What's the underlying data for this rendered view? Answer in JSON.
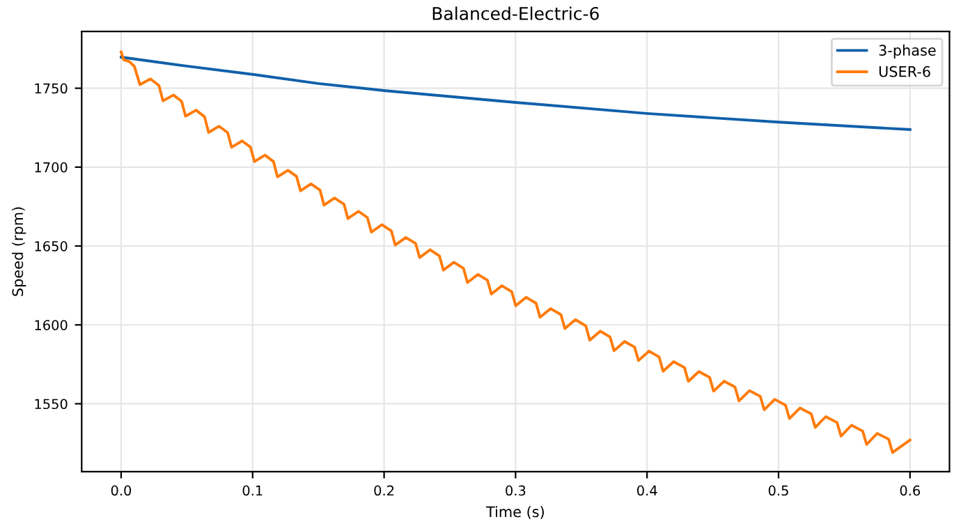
{
  "chart_data": {
    "type": "line",
    "title": "Balanced-Electric-6",
    "xlabel": "Time (s)",
    "ylabel": "Speed (rpm)",
    "xlim": [
      -0.03,
      0.63
    ],
    "ylim": [
      1507,
      1786
    ],
    "xticks": [
      {
        "value": 0,
        "label": "0.0"
      },
      0.1,
      0.2,
      0.3,
      0.4,
      0.5,
      0.6
    ],
    "yticks": [
      1550,
      1600,
      1650,
      1700,
      1750
    ],
    "grid": true,
    "legend": "top right",
    "line_style": "solid",
    "series": [
      {
        "name": "3-phase",
        "color": "#1060aa",
        "x": [
          0,
          0.05,
          0.1,
          0.15,
          0.2,
          0.3,
          0.4,
          0.5,
          0.6
        ],
        "values": [
          1769.7,
          1764,
          1758.8,
          1753,
          1748.5,
          1741,
          1734,
          1728.5,
          1723.8
        ]
      },
      {
        "name": "USER-6",
        "color": "#ff7b0a",
        "x": [
          0,
          0.002,
          0.006,
          0.01,
          0.0143,
          0.0223,
          0.0288,
          0.0318,
          0.0398,
          0.046,
          0.049,
          0.057,
          0.0635,
          0.0665,
          0.0745,
          0.081,
          0.084,
          0.092,
          0.0984,
          0.1014,
          0.1094,
          0.1159,
          0.1189,
          0.1269,
          0.1334,
          0.1364,
          0.1444,
          0.1513,
          0.1543,
          0.1623,
          0.1695,
          0.1725,
          0.1805,
          0.1873,
          0.1903,
          0.1983,
          0.2055,
          0.2085,
          0.2165,
          0.224,
          0.227,
          0.235,
          0.2421,
          0.2451,
          0.2531,
          0.2604,
          0.2634,
          0.2714,
          0.2786,
          0.2816,
          0.2896,
          0.2971,
          0.3001,
          0.3081,
          0.3156,
          0.3186,
          0.3266,
          0.3345,
          0.3375,
          0.3455,
          0.3534,
          0.3564,
          0.3644,
          0.3719,
          0.3749,
          0.3829,
          0.3905,
          0.3935,
          0.4015,
          0.4092,
          0.4122,
          0.4202,
          0.4284,
          0.4314,
          0.4394,
          0.4476,
          0.4506,
          0.4586,
          0.4669,
          0.4699,
          0.4779,
          0.4861,
          0.4891,
          0.4971,
          0.5053,
          0.5083,
          0.5163,
          0.5249,
          0.5279,
          0.5359,
          0.5445,
          0.5475,
          0.5555,
          0.564,
          0.567,
          0.575,
          0.5837,
          0.5867,
          0.6
        ],
        "values": [
          1773,
          1768,
          1767,
          1764,
          1752.3,
          1755.9,
          1751.7,
          1742.0,
          1745.7,
          1741.7,
          1732.3,
          1736.1,
          1731.9,
          1722.0,
          1725.9,
          1721.9,
          1712.6,
          1716.6,
          1712.7,
          1703.5,
          1707.6,
          1703.5,
          1693.8,
          1698.0,
          1694.1,
          1685.0,
          1689.4,
          1685.4,
          1675.9,
          1680.4,
          1676.5,
          1667.4,
          1672.0,
          1668.0,
          1658.8,
          1663.5,
          1659.6,
          1650.6,
          1655.4,
          1651.6,
          1642.7,
          1647.6,
          1643.7,
          1634.7,
          1639.7,
          1635.8,
          1626.8,
          1632.0,
          1628.3,
          1619.5,
          1624.8,
          1621.0,
          1612.1,
          1617.5,
          1613.7,
          1604.8,
          1610.3,
          1606.5,
          1597.7,
          1603.3,
          1599.4,
          1590.3,
          1596.0,
          1592.3,
          1583.6,
          1589.5,
          1585.9,
          1577.4,
          1583.4,
          1579.6,
          1570.6,
          1576.7,
          1573.0,
          1564.2,
          1570.4,
          1566.7,
          1558.0,
          1564.3,
          1560.6,
          1551.8,
          1558.3,
          1554.7,
          1546.2,
          1552.8,
          1549.1,
          1540.6,
          1547.3,
          1543.6,
          1535.0,
          1541.8,
          1538.1,
          1529.5,
          1536.4,
          1532.7,
          1524.2,
          1531.2,
          1527.6,
          1519.1,
          1527
        ]
      }
    ]
  }
}
